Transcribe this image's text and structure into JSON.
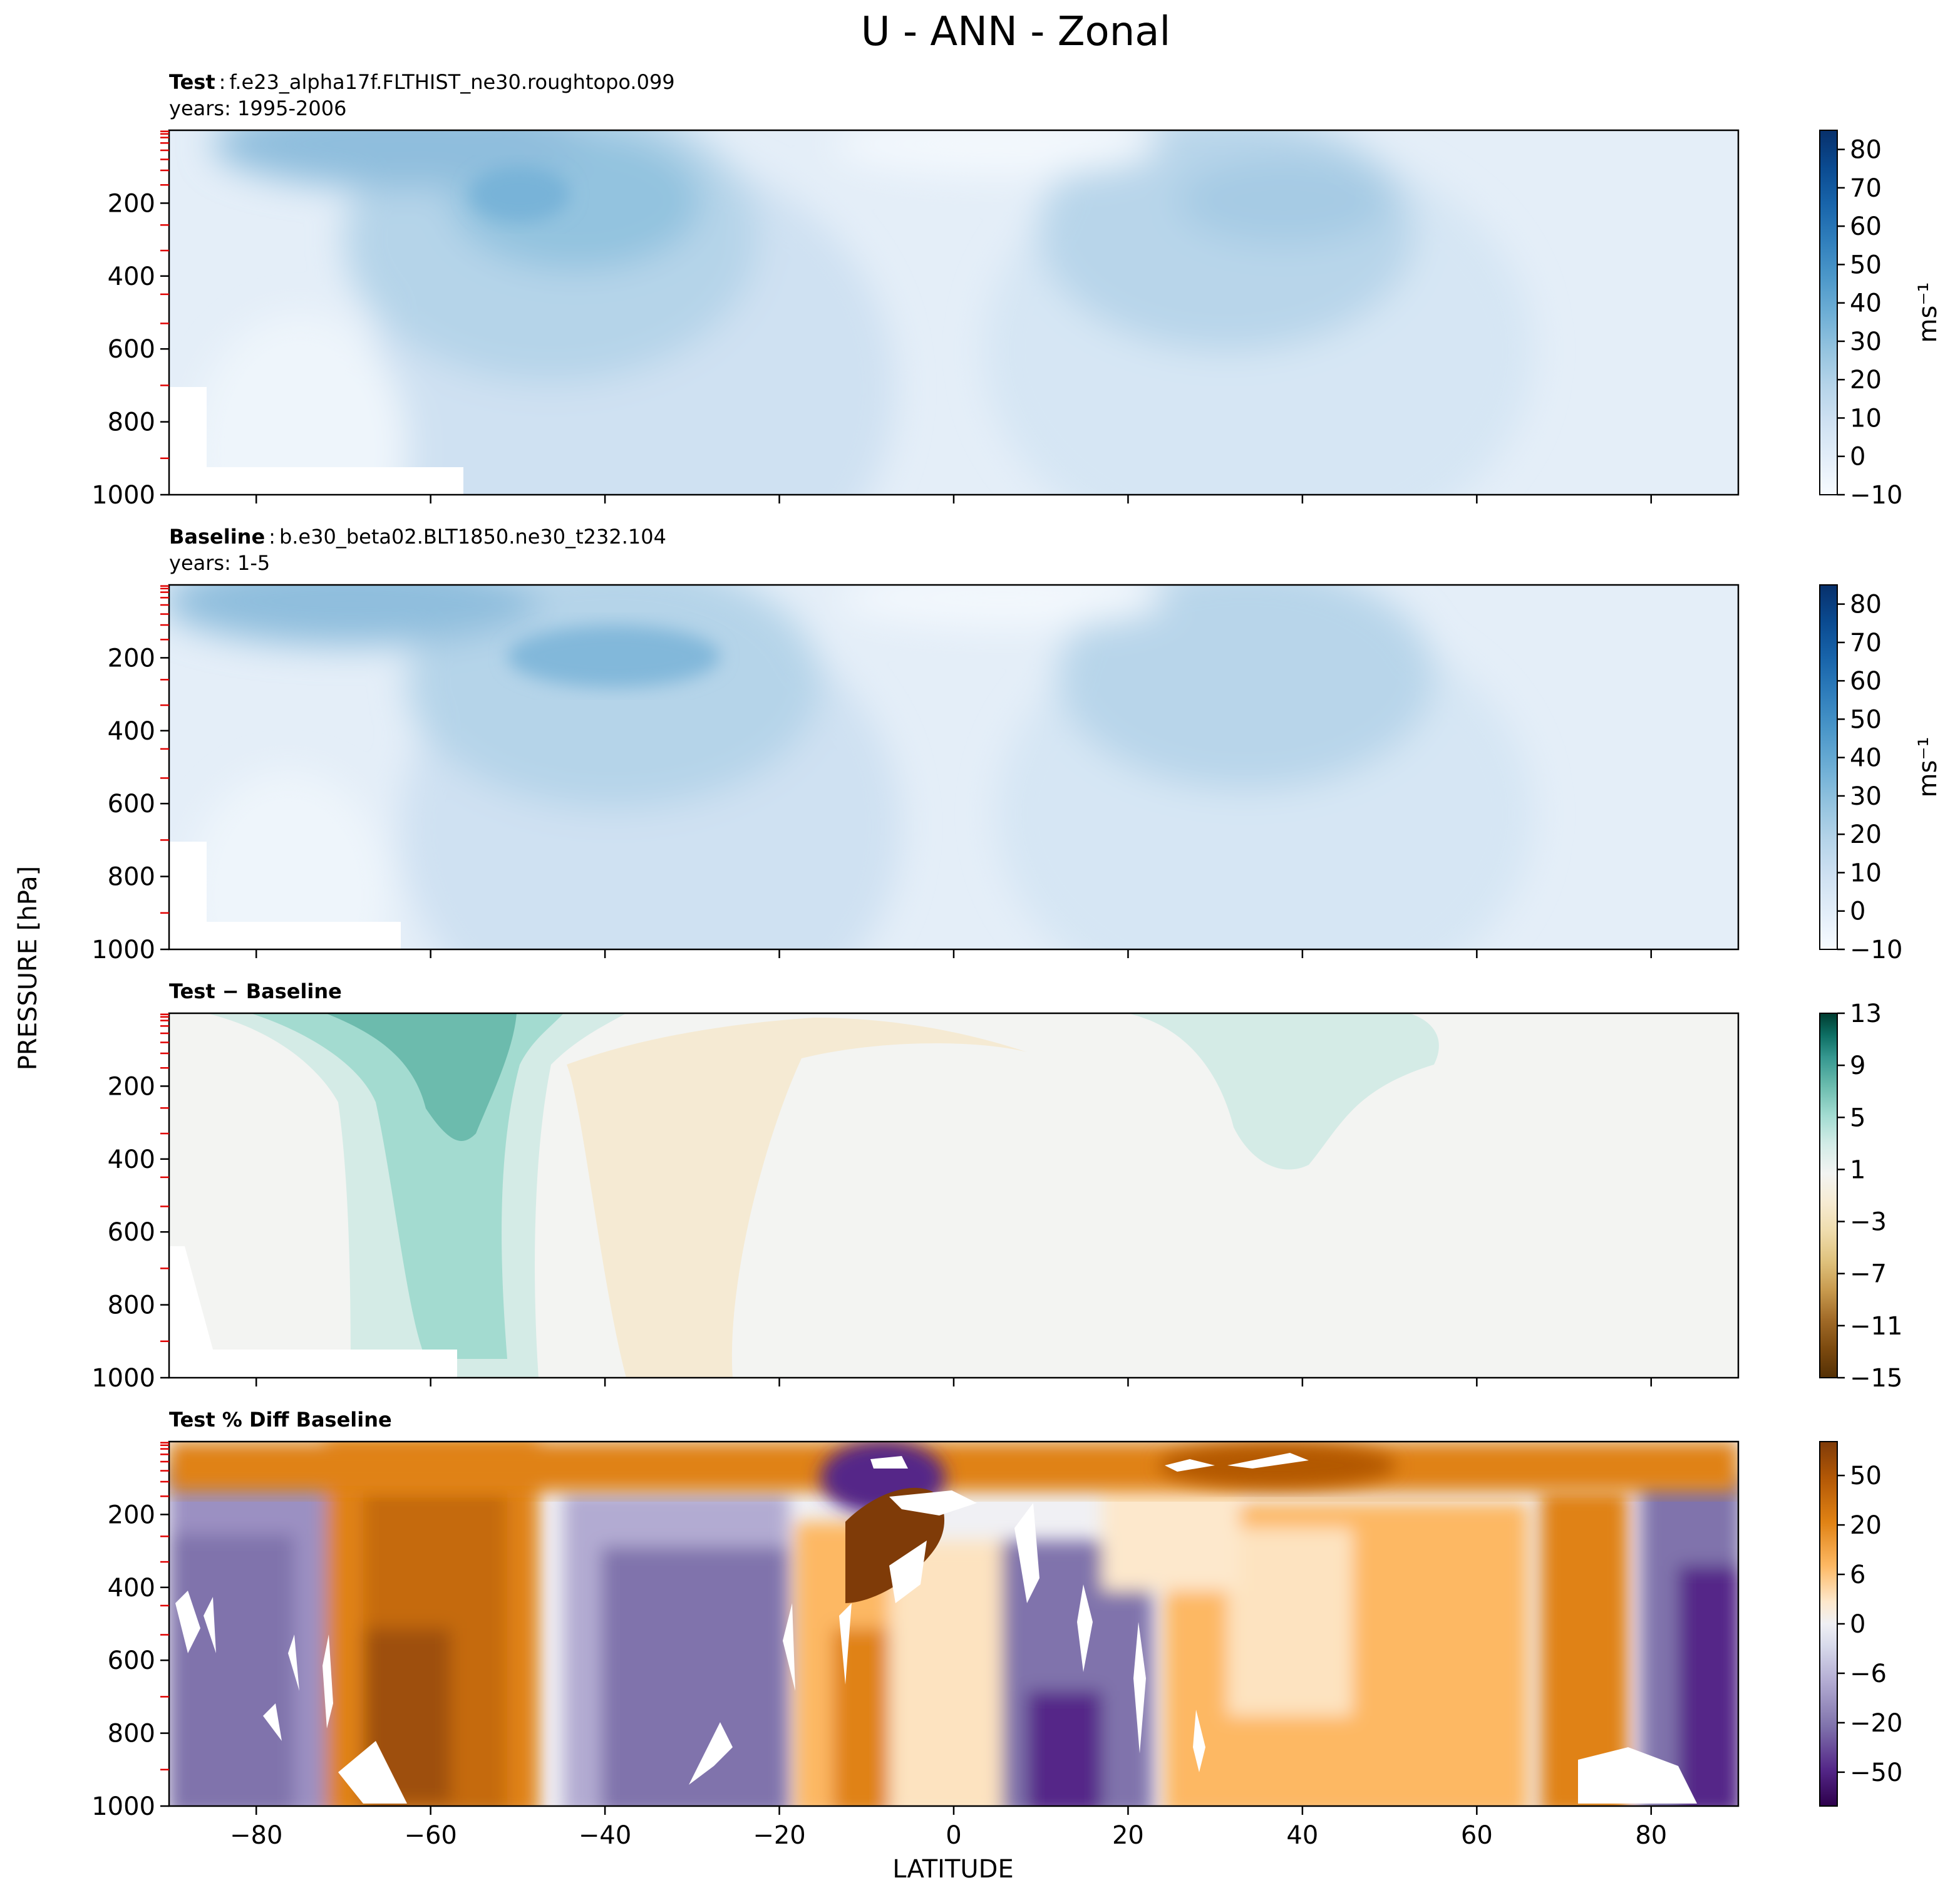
{
  "figure": {
    "title": "U - ANN - Zonal",
    "ylabel": "PRESSURE [hPa]",
    "xlabel": "LATITUDE"
  },
  "chart_data": [
    {
      "type": "heatmap",
      "panel": "test",
      "label_bold": "Test",
      "label_sep": ":",
      "label_text": "f.e23_alpha17f.FLTHIST_ne30.roughtopo.099",
      "years": "years: 1995-2006",
      "x": [
        -90,
        90
      ],
      "xlim": [
        -90,
        90
      ],
      "ylim": [
        1000,
        0
      ],
      "y_inverted": true,
      "yticks": [
        200,
        400,
        600,
        800,
        1000
      ],
      "yticklabels": [
        "200",
        "400",
        "600",
        "800",
        "1000"
      ],
      "xticks": [
        -80,
        -60,
        -40,
        -20,
        0,
        20,
        40,
        60,
        80
      ],
      "xticklabels": [],
      "colormap": "Blues",
      "colorbar": {
        "ticks": [
          80,
          70,
          60,
          50,
          40,
          30,
          20,
          10,
          0,
          -10
        ],
        "ticklabels": [
          "80",
          "70",
          "60",
          "50",
          "40",
          "30",
          "20",
          "10",
          "0",
          "−10"
        ],
        "units": "ms⁻¹",
        "range": [
          -10,
          85
        ],
        "colors": [
          "#f7fbff",
          "#e3eef9",
          "#cfe1f2",
          "#b5d4e9",
          "#93c3df",
          "#6daed5",
          "#4b97c9",
          "#2f7ebc",
          "#1864aa",
          "#0a4a90",
          "#08306b"
        ]
      },
      "features": [
        {
          "name": "SH jet core",
          "lat": -50,
          "p": 200,
          "u_max": 40
        },
        {
          "name": "NH jet core",
          "lat": 38,
          "p": 200,
          "u_max": 30
        }
      ]
    },
    {
      "type": "heatmap",
      "panel": "baseline",
      "label_bold": "Baseline",
      "label_sep": ":",
      "label_text": "b.e30_beta02.BLT1850.ne30_t232.104",
      "years": "years: 1-5",
      "x": [
        -90,
        90
      ],
      "xlim": [
        -90,
        90
      ],
      "ylim": [
        1000,
        0
      ],
      "y_inverted": true,
      "yticks": [
        200,
        400,
        600,
        800,
        1000
      ],
      "yticklabels": [
        "200",
        "400",
        "600",
        "800",
        "1000"
      ],
      "xticks": [
        -80,
        -60,
        -40,
        -20,
        0,
        20,
        40,
        60,
        80
      ],
      "xticklabels": [],
      "colormap": "Blues",
      "colorbar": {
        "ticks": [
          80,
          70,
          60,
          50,
          40,
          30,
          20,
          10,
          0,
          -10
        ],
        "ticklabels": [
          "80",
          "70",
          "60",
          "50",
          "40",
          "30",
          "20",
          "10",
          "0",
          "−10"
        ],
        "units": "ms⁻¹",
        "range": [
          -10,
          85
        ],
        "colors": [
          "#f7fbff",
          "#e3eef9",
          "#cfe1f2",
          "#b5d4e9",
          "#93c3df",
          "#6daed5",
          "#4b97c9",
          "#2f7ebc",
          "#1864aa",
          "#0a4a90",
          "#08306b"
        ]
      },
      "features": [
        {
          "name": "SH jet core",
          "lat": -45,
          "p": 200,
          "u_max": 35
        },
        {
          "name": "NH jet core",
          "lat": 38,
          "p": 200,
          "u_max": 30
        }
      ]
    },
    {
      "type": "heatmap",
      "panel": "difference",
      "label_bold": "Test − Baseline",
      "x": [
        -90,
        90
      ],
      "xlim": [
        -90,
        90
      ],
      "ylim": [
        1000,
        0
      ],
      "y_inverted": true,
      "yticks": [
        200,
        400,
        600,
        800,
        1000
      ],
      "yticklabels": [
        "200",
        "400",
        "600",
        "800",
        "1000"
      ],
      "xticks": [
        -80,
        -60,
        -40,
        -20,
        0,
        20,
        40,
        60,
        80
      ],
      "xticklabels": [],
      "colormap": "BrBG",
      "colorbar": {
        "ticks": [
          13,
          9,
          5,
          1,
          -3,
          -7,
          -11,
          -15
        ],
        "ticklabels": [
          "13",
          "9",
          "5",
          "1",
          "−3",
          "−7",
          "−11",
          "−15"
        ],
        "range": [
          -15,
          13
        ],
        "colors": [
          "#543005",
          "#7c4a0f",
          "#a16b28",
          "#c89a4e",
          "#dfc27d",
          "#efdcac",
          "#f6ebd2",
          "#f3f4f2",
          "#d3ece7",
          "#a2dcd1",
          "#6bbcae",
          "#35978f",
          "#0d6e63",
          "#003c30"
        ]
      },
      "features": [
        {
          "name": "positive max",
          "lat": -60,
          "p": 200,
          "du": 9
        },
        {
          "name": "negative region",
          "lat": -25,
          "p": 600,
          "du": -3
        },
        {
          "name": "NH positive",
          "lat": 40,
          "p": 200,
          "du": 3
        }
      ]
    },
    {
      "type": "heatmap",
      "panel": "percent_difference",
      "label_bold": "Test % Diff Baseline",
      "x": [
        -90,
        90
      ],
      "xlim": [
        -90,
        90
      ],
      "ylim": [
        1000,
        0
      ],
      "y_inverted": true,
      "yticks": [
        200,
        400,
        600,
        800,
        1000
      ],
      "yticklabels": [
        "200",
        "400",
        "600",
        "800",
        "1000"
      ],
      "xticks": [
        -80,
        -60,
        -40,
        -20,
        0,
        20,
        40,
        60,
        80
      ],
      "xticklabels": [
        "−80",
        "−60",
        "−40",
        "−20",
        "0",
        "20",
        "40",
        "60",
        "80"
      ],
      "colormap": "PuOr",
      "colorbar": {
        "ticks": [
          50,
          20,
          6,
          0,
          -6,
          -20,
          -50
        ],
        "ticklabels": [
          "50",
          "20",
          "6",
          "0",
          "−6",
          "−20",
          "−50"
        ],
        "colors": [
          "#2d004b",
          "#542788",
          "#8073ac",
          "#b2abd2",
          "#d8daeb",
          "#f0f0f4",
          "#fde8cc",
          "#fdb863",
          "#e08214",
          "#b35806",
          "#7f3b08"
        ]
      }
    }
  ]
}
